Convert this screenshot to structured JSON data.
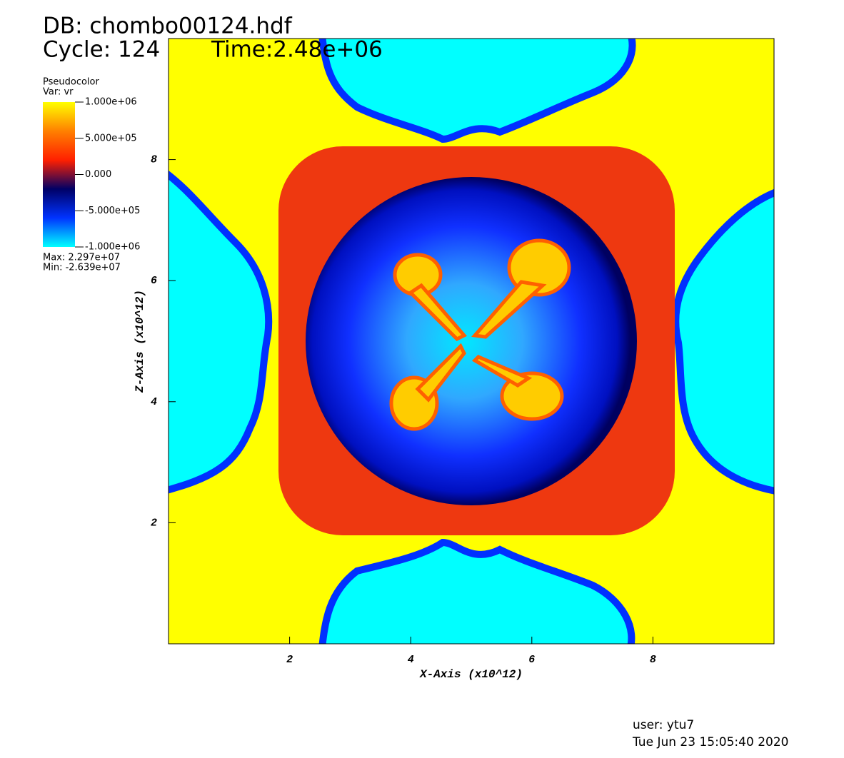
{
  "chart_data": {
    "type": "pseudocolor",
    "db_title": "DB: chombo00124.hdf",
    "cycle": "Cycle: 124",
    "time": "Time:2.48e+06",
    "legend_title": "Pseudocolor",
    "legend_var": "Var: vr",
    "max_label": "Max:  2.297e+07",
    "min_label": "Min: -2.639e+07",
    "x_label": "X-Axis (x10^12)",
    "y_label": "Z-Axis (x10^12)",
    "xlim": [
      0,
      10
    ],
    "ylim": [
      0,
      10
    ],
    "xticks": [
      2,
      4,
      6,
      8
    ],
    "yticks": [
      2,
      4,
      6,
      8
    ],
    "colorbar_lim": [
      -1000000,
      1000000
    ],
    "colorbar_ticks": [
      {
        "value": 1000000,
        "label": "1.000e+06"
      },
      {
        "value": 500000,
        "label": "5.000e+05"
      },
      {
        "value": 0,
        "label": "0.000"
      },
      {
        "value": -500000,
        "label": "-5.000e+05"
      },
      {
        "value": -1000000,
        "label": "-1.000e+06"
      }
    ],
    "colormap": [
      "#00ffff",
      "#0033ff",
      "#000066",
      "#ff2000",
      "#ff8000",
      "#ffff00"
    ],
    "user": "user: ytu7",
    "date": "Tue Jun 23 15:05:40 2020"
  }
}
